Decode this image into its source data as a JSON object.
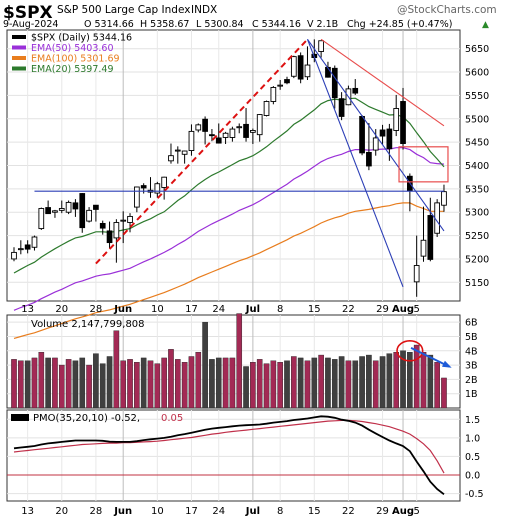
{
  "header": {
    "ticker": "$SPX",
    "name": "S&P 500 Large Cap Index",
    "exchange": "INDX",
    "watermark": "@StockCharts.com",
    "date": "9-Aug-2024",
    "open": "O 5314.66",
    "high": "H 5358.67",
    "low": "L 5300.84",
    "close": "C 5344.16",
    "volume": "V 2.1B",
    "change": "Chg +24.85 (+0.47%)",
    "change_symbol": "▲"
  },
  "price_legend": [
    {
      "label": "$SPX (Daily) 5344.16",
      "color": "#000000"
    },
    {
      "label": "EMA(50) 5403.60",
      "color": "#9a30d8"
    },
    {
      "label": "EMA(100) 5301.69",
      "color": "#e87d1e"
    },
    {
      "label": "EMA(20) 5397.49",
      "color": "#2d7a2d"
    }
  ],
  "volume_legend": "Volume 2,147,799,808",
  "pmo_legend": {
    "prefix": "PMO(35,20,10) -0.52,",
    "signal": "0.05",
    "signal_color": "#c0304a"
  },
  "x_axis_labels": [
    "13",
    "20",
    "28",
    "Jun",
    "10",
    "17",
    "24",
    "Jul",
    "8",
    "15",
    "22",
    "29",
    "Aug",
    "5"
  ],
  "x_axis_bold": [
    "Jun",
    "Jul",
    "Aug"
  ],
  "chart_data": [
    {
      "type": "candlestick",
      "title": "$SPX (Daily)",
      "x": [
        "May-09",
        "May-10",
        "May-13",
        "May-14",
        "May-15",
        "May-16",
        "May-17",
        "May-20",
        "May-21",
        "May-22",
        "May-23",
        "May-24",
        "May-28",
        "May-29",
        "May-30",
        "May-31",
        "Jun-03",
        "Jun-04",
        "Jun-05",
        "Jun-06",
        "Jun-07",
        "Jun-10",
        "Jun-11",
        "Jun-12",
        "Jun-13",
        "Jun-14",
        "Jun-17",
        "Jun-18",
        "Jun-20",
        "Jun-21",
        "Jun-24",
        "Jun-25",
        "Jun-26",
        "Jun-27",
        "Jun-28",
        "Jul-01",
        "Jul-02",
        "Jul-03",
        "Jul-05",
        "Jul-08",
        "Jul-09",
        "Jul-10",
        "Jul-11",
        "Jul-12",
        "Jul-15",
        "Jul-16",
        "Jul-17",
        "Jul-18",
        "Jul-19",
        "Jul-22",
        "Jul-23",
        "Jul-24",
        "Jul-25",
        "Jul-26",
        "Jul-29",
        "Jul-30",
        "Jul-31",
        "Aug-01",
        "Aug-02",
        "Aug-05",
        "Aug-06",
        "Aug-07",
        "Aug-08",
        "Aug-09"
      ],
      "ohlc": [
        [
          5200,
          5225,
          5195,
          5214
        ],
        [
          5222,
          5240,
          5210,
          5222
        ],
        [
          5230,
          5240,
          5212,
          5221
        ],
        [
          5225,
          5250,
          5218,
          5247
        ],
        [
          5265,
          5310,
          5262,
          5308
        ],
        [
          5310,
          5325,
          5298,
          5297
        ],
        [
          5300,
          5305,
          5288,
          5303
        ],
        [
          5304,
          5325,
          5298,
          5308
        ],
        [
          5300,
          5325,
          5296,
          5321
        ],
        [
          5320,
          5328,
          5290,
          5307
        ],
        [
          5340,
          5341,
          5256,
          5267
        ],
        [
          5281,
          5311,
          5278,
          5304
        ],
        [
          5315,
          5315,
          5280,
          5306
        ],
        [
          5276,
          5282,
          5252,
          5266
        ],
        [
          5260,
          5280,
          5222,
          5235
        ],
        [
          5245,
          5285,
          5192,
          5278
        ],
        [
          5283,
          5302,
          5234,
          5283
        ],
        [
          5278,
          5298,
          5257,
          5291
        ],
        [
          5311,
          5355,
          5300,
          5354
        ],
        [
          5357,
          5362,
          5340,
          5352
        ],
        [
          5343,
          5375,
          5331,
          5347
        ],
        [
          5341,
          5365,
          5331,
          5361
        ],
        [
          5353,
          5376,
          5327,
          5375
        ],
        [
          5410,
          5447,
          5404,
          5421
        ],
        [
          5433,
          5441,
          5404,
          5433
        ],
        [
          5424,
          5432,
          5404,
          5431
        ],
        [
          5432,
          5488,
          5421,
          5473
        ],
        [
          5476,
          5490,
          5471,
          5487
        ],
        [
          5499,
          5505,
          5445,
          5473
        ],
        [
          5466,
          5478,
          5452,
          5465
        ],
        [
          5459,
          5490,
          5447,
          5448
        ],
        [
          5460,
          5472,
          5446,
          5469
        ],
        [
          5460,
          5483,
          5451,
          5478
        ],
        [
          5483,
          5490,
          5469,
          5483
        ],
        [
          5488,
          5523,
          5451,
          5460
        ],
        [
          5471,
          5479,
          5446,
          5475
        ],
        [
          5466,
          5510,
          5451,
          5509
        ],
        [
          5507,
          5539,
          5505,
          5537
        ],
        [
          5537,
          5570,
          5531,
          5567
        ],
        [
          5572,
          5583,
          5562,
          5572
        ],
        [
          5584,
          5590,
          5574,
          5577
        ],
        [
          5591,
          5635,
          5587,
          5633
        ],
        [
          5635,
          5642,
          5576,
          5585
        ],
        [
          5590,
          5655,
          5583,
          5615
        ],
        [
          5638,
          5670,
          5621,
          5631
        ],
        [
          5644,
          5667,
          5631,
          5667
        ],
        [
          5610,
          5622,
          5588,
          5589
        ],
        [
          5608,
          5614,
          5522,
          5545
        ],
        [
          5543,
          5557,
          5497,
          5505
        ],
        [
          5530,
          5571,
          5529,
          5564
        ],
        [
          5565,
          5585,
          5551,
          5555
        ],
        [
          5505,
          5508,
          5422,
          5427
        ],
        [
          5428,
          5491,
          5390,
          5399
        ],
        [
          5433,
          5478,
          5421,
          5459
        ],
        [
          5476,
          5487,
          5444,
          5463
        ],
        [
          5478,
          5489,
          5410,
          5436
        ],
        [
          5475,
          5551,
          5463,
          5522
        ],
        [
          5537,
          5566,
          5434,
          5447
        ],
        [
          5377,
          5383,
          5302,
          5346
        ],
        [
          5151,
          5250,
          5119,
          5186
        ],
        [
          5206,
          5312,
          5194,
          5240
        ],
        [
          5293,
          5331,
          5195,
          5199
        ],
        [
          5255,
          5328,
          5247,
          5320
        ],
        [
          5315,
          5359,
          5301,
          5344
        ]
      ],
      "ema20": [
        5170,
        5178,
        5186,
        5193,
        5204,
        5213,
        5222,
        5230,
        5238,
        5245,
        5248,
        5253,
        5258,
        5258,
        5257,
        5259,
        5262,
        5265,
        5273,
        5280,
        5286,
        5294,
        5301,
        5313,
        5325,
        5335,
        5348,
        5360,
        5370,
        5379,
        5386,
        5394,
        5402,
        5410,
        5415,
        5421,
        5430,
        5440,
        5452,
        5463,
        5474,
        5488,
        5497,
        5508,
        5519,
        5532,
        5539,
        5542,
        5540,
        5543,
        5544,
        5535,
        5526,
        5520,
        5514,
        5508,
        5509,
        5504,
        5490,
        5470,
        5451,
        5430,
        5414,
        5397
      ],
      "ema50": [
        5090,
        5096,
        5101,
        5107,
        5115,
        5122,
        5129,
        5135,
        5142,
        5149,
        5153,
        5158,
        5163,
        5166,
        5168,
        5172,
        5176,
        5180,
        5187,
        5194,
        5200,
        5207,
        5214,
        5222,
        5231,
        5239,
        5249,
        5259,
        5267,
        5275,
        5282,
        5289,
        5296,
        5304,
        5310,
        5316,
        5324,
        5333,
        5342,
        5351,
        5360,
        5371,
        5379,
        5388,
        5398,
        5408,
        5415,
        5420,
        5424,
        5430,
        5434,
        5434,
        5433,
        5434,
        5435,
        5435,
        5438,
        5438,
        5434,
        5424,
        5417,
        5406,
        5404,
        5403
      ],
      "ema100": [
        5030,
        5034,
        5038,
        5042,
        5047,
        5052,
        5057,
        5062,
        5067,
        5072,
        5076,
        5080,
        5085,
        5088,
        5091,
        5095,
        5099,
        5103,
        5108,
        5113,
        5118,
        5123,
        5128,
        5134,
        5140,
        5146,
        5153,
        5160,
        5166,
        5172,
        5178,
        5184,
        5190,
        5196,
        5201,
        5207,
        5213,
        5220,
        5227,
        5234,
        5241,
        5249,
        5255,
        5262,
        5269,
        5277,
        5283,
        5288,
        5292,
        5298,
        5302,
        5304,
        5306,
        5309,
        5312,
        5314,
        5318,
        5320,
        5320,
        5313,
        5308,
        5302,
        5302,
        5302
      ],
      "ylim": [
        5110,
        5690
      ],
      "y_ticks": [
        5150,
        5200,
        5250,
        5300,
        5350,
        5400,
        5450,
        5500,
        5550,
        5600,
        5650
      ],
      "annotations": [
        {
          "kind": "dashed-trendline",
          "color": "#dd1111",
          "points": [
            [
              "May-28",
              5190
            ],
            [
              "Jul-12",
              5670
            ]
          ]
        },
        {
          "kind": "trendline",
          "color": "#2c3fb6",
          "points": [
            [
              "May-14",
              5345
            ],
            [
              "Aug-09",
              5345
            ]
          ]
        },
        {
          "kind": "trendline",
          "color": "#2c3fb6",
          "points": [
            [
              "Jul-12",
              5670
            ],
            [
              "Aug-01",
              5140
            ]
          ]
        },
        {
          "kind": "trendline",
          "color": "#2c3fb6",
          "points": [
            [
              "Jul-12",
              5670
            ],
            [
              "Aug-09",
              5260
            ]
          ]
        },
        {
          "kind": "trendline",
          "color": "#e84c4c",
          "points": [
            [
              "Jul-16",
              5670
            ],
            [
              "Aug-09",
              5485
            ]
          ]
        },
        {
          "kind": "box",
          "color": "#e84c4c",
          "x": [
            "Aug-01",
            "Aug-09"
          ],
          "y": [
            5365,
            5440
          ]
        }
      ]
    },
    {
      "type": "bar",
      "title": "Volume",
      "values": [
        3.4,
        3.3,
        3.3,
        3.5,
        3.9,
        3.5,
        3.5,
        3.0,
        3.4,
        3.3,
        3.5,
        3.0,
        3.8,
        3.1,
        3.6,
        5.4,
        3.3,
        3.4,
        3.2,
        3.5,
        3.3,
        3.1,
        3.5,
        4.1,
        3.4,
        3.2,
        3.6,
        3.9,
        6.0,
        3.4,
        3.5,
        3.5,
        3.5,
        6.6,
        2.9,
        3.2,
        3.4,
        3.1,
        3.3,
        3.2,
        3.3,
        3.6,
        3.5,
        3.3,
        3.5,
        3.7,
        3.5,
        3.4,
        3.6,
        3.3,
        3.3,
        3.6,
        3.7,
        3.3,
        3.6,
        3.8,
        3.9,
        4.0,
        3.9,
        4.4,
        3.9,
        3.7,
        3.2,
        2.1
      ],
      "unit": "B",
      "ylim": [
        0,
        6.5
      ],
      "y_ticks": [
        1,
        2,
        3,
        4,
        5,
        6
      ],
      "y_tick_labels": [
        "1B",
        "2B",
        "3B",
        "4B",
        "5B",
        "6B"
      ],
      "annotations": [
        {
          "kind": "circle",
          "color": "#dd1111",
          "x": [
            "Aug-01",
            "Aug-05"
          ]
        },
        {
          "kind": "arrow",
          "color": "#1e5bd8",
          "from": [
            "Aug-01",
            4.2
          ],
          "to": [
            "Aug-09",
            2.9
          ]
        }
      ]
    },
    {
      "type": "line",
      "title": "PMO(35,20,10)",
      "series": [
        {
          "values": [
            0.72,
            0.74,
            0.76,
            0.78,
            0.82,
            0.85,
            0.87,
            0.89,
            0.91,
            0.93,
            0.93,
            0.93,
            0.93,
            0.92,
            0.9,
            0.89,
            0.89,
            0.89,
            0.91,
            0.94,
            0.96,
            0.98,
            1,
            1.03,
            1.07,
            1.1,
            1.14,
            1.18,
            1.22,
            1.25,
            1.27,
            1.29,
            1.31,
            1.33,
            1.34,
            1.35,
            1.36,
            1.38,
            1.41,
            1.43,
            1.45,
            1.48,
            1.5,
            1.52,
            1.55,
            1.58,
            1.57,
            1.54,
            1.49,
            1.46,
            1.41,
            1.33,
            1.22,
            1.12,
            1.02,
            0.93,
            0.85,
            0.78,
            0.64,
            0.36,
            0.1,
            -0.18,
            -0.38,
            -0.52
          ],
          "color": "#000000"
        },
        {
          "values": [
            0.62,
            0.64,
            0.66,
            0.68,
            0.7,
            0.72,
            0.74,
            0.76,
            0.78,
            0.8,
            0.82,
            0.83,
            0.84,
            0.85,
            0.86,
            0.86,
            0.87,
            0.87,
            0.88,
            0.89,
            0.9,
            0.91,
            0.93,
            0.95,
            0.97,
            0.99,
            1.01,
            1.04,
            1.07,
            1.1,
            1.12,
            1.15,
            1.17,
            1.19,
            1.21,
            1.23,
            1.25,
            1.27,
            1.29,
            1.31,
            1.33,
            1.35,
            1.37,
            1.39,
            1.41,
            1.43,
            1.45,
            1.46,
            1.47,
            1.47,
            1.46,
            1.44,
            1.41,
            1.38,
            1.34,
            1.3,
            1.24,
            1.18,
            1.1,
            0.98,
            0.84,
            0.66,
            0.38,
            0.05
          ],
          "color": "#c0304a"
        }
      ],
      "ylim": [
        -0.7,
        1.75
      ],
      "y_ticks": [
        -0.5,
        0,
        0.5,
        1,
        1.5
      ],
      "y_tick_labels": [
        "-0.5",
        "0.0",
        "0.5",
        "1.0",
        "1.5"
      ],
      "zero_line_color": "#c03040"
    }
  ]
}
